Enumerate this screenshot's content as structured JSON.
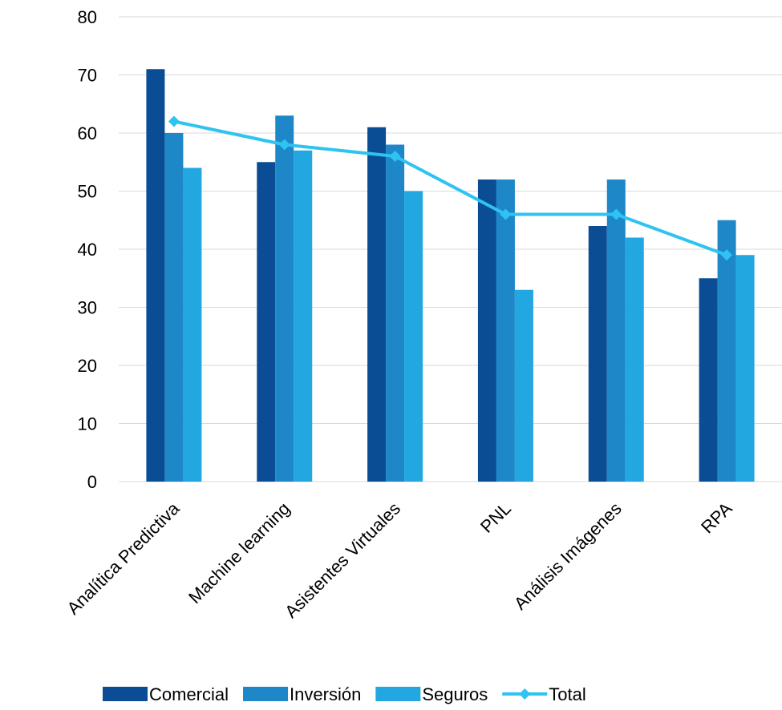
{
  "chart_data": {
    "type": "bar",
    "categories": [
      "Analítica Predictiva",
      "Machine learning",
      "Asistentes Virtuales",
      "PNL",
      "Análisis Imágenes",
      "RPA"
    ],
    "series": [
      {
        "name": "Comercial",
        "type": "bar",
        "color": "#0b4d94",
        "values": [
          71,
          55,
          61,
          52,
          44,
          35
        ]
      },
      {
        "name": "Inversión",
        "type": "bar",
        "color": "#1d87c8",
        "values": [
          60,
          63,
          58,
          52,
          52,
          45
        ]
      },
      {
        "name": "Seguros",
        "type": "bar",
        "color": "#22a7e0",
        "values": [
          54,
          57,
          50,
          33,
          42,
          39
        ]
      },
      {
        "name": "Total",
        "type": "line",
        "color": "#2ec3f0",
        "values": [
          62,
          58,
          56,
          46,
          46,
          39
        ]
      }
    ],
    "ylim": [
      0,
      80
    ],
    "yticks": [
      "0",
      "10",
      "20",
      "30",
      "40",
      "50",
      "60",
      "70",
      "80"
    ],
    "grid": true,
    "legend_position": "bottom"
  }
}
